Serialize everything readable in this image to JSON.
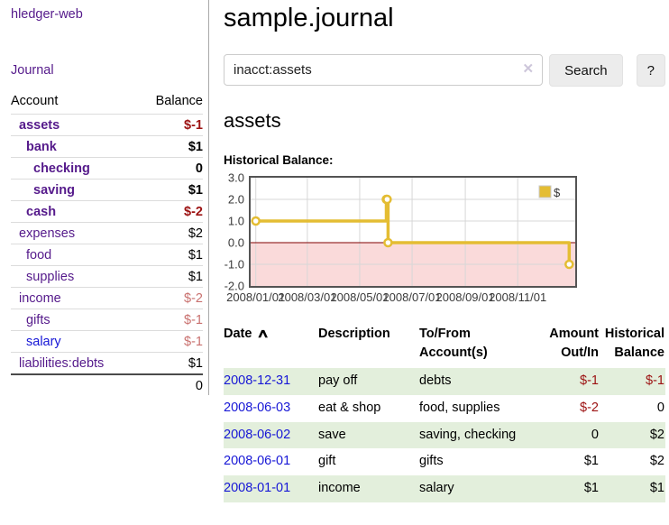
{
  "sidebar": {
    "brand": "hledger-web",
    "journal_label": "Journal",
    "accounts_table": {
      "headers": [
        "Account",
        "Balance"
      ],
      "rows": [
        {
          "account": "assets",
          "balance": "$-1",
          "level": 1,
          "bold": true,
          "balance_style": "neg-strong",
          "link_style": "plink"
        },
        {
          "account": "bank",
          "balance": "$1",
          "level": 2,
          "bold": true,
          "balance_style": "pos",
          "link_style": "plink"
        },
        {
          "account": "checking",
          "balance": "0",
          "level": 3,
          "bold": true,
          "balance_style": "pos",
          "link_style": "plink"
        },
        {
          "account": "saving",
          "balance": "$1",
          "level": 3,
          "bold": true,
          "balance_style": "pos",
          "link_style": "plink"
        },
        {
          "account": "cash",
          "balance": "$-2",
          "level": 2,
          "bold": true,
          "balance_style": "neg-strong",
          "link_style": "plink"
        },
        {
          "account": "expenses",
          "balance": "$2",
          "level": 1,
          "bold": false,
          "balance_style": "pos",
          "link_style": "plink"
        },
        {
          "account": "food",
          "balance": "$1",
          "level": 2,
          "bold": false,
          "balance_style": "pos",
          "link_style": "plink"
        },
        {
          "account": "supplies",
          "balance": "$1",
          "level": 2,
          "bold": false,
          "balance_style": "pos",
          "link_style": "plink"
        },
        {
          "account": "income",
          "balance": "$-2",
          "level": 1,
          "bold": false,
          "balance_style": "neg-muted",
          "link_style": "plink"
        },
        {
          "account": "gifts",
          "balance": "$-1",
          "level": 2,
          "bold": false,
          "balance_style": "neg-muted",
          "link_style": "plink"
        },
        {
          "account": "salary",
          "balance": "$-1",
          "level": 2,
          "bold": false,
          "balance_style": "neg-muted",
          "link_style": "blink"
        },
        {
          "account": "liabilities:debts",
          "balance": "$1",
          "level": 1,
          "bold": false,
          "balance_style": "pos",
          "link_style": "plink"
        }
      ],
      "total": "0"
    }
  },
  "header": {
    "title": "sample.journal"
  },
  "search": {
    "value": "inacct:assets",
    "clear_icon": "✕",
    "button_label": "Search",
    "help_label": "?"
  },
  "account_page": {
    "title": "assets",
    "chart_label": "Historical Balance:"
  },
  "chart_data": {
    "type": "line",
    "step": true,
    "title": "Historical Balance:",
    "series": [
      {
        "name": "$",
        "color": "#e4bd33",
        "points": [
          [
            "2008-01-01",
            1
          ],
          [
            "2008-06-01",
            2
          ],
          [
            "2008-06-02",
            2
          ],
          [
            "2008-06-03",
            0
          ],
          [
            "2008-12-31",
            -1
          ]
        ]
      }
    ],
    "x_ticks": [
      "2008/01/01",
      "2008/03/01",
      "2008/05/01",
      "2008/07/01",
      "2008/09/01",
      "2008/11/01"
    ],
    "y_ticks": [
      "3.0",
      "2.0",
      "1.0",
      "0.0",
      "-1.0",
      "-2.0"
    ],
    "ylim": [
      -2,
      3
    ],
    "x_domain": [
      "2007-12-26",
      "2009-01-07"
    ],
    "grid": true,
    "legend_position": "top-right",
    "negative_fill": "#fadada",
    "zero_line_color": "#800000",
    "grid_color": "#d7d7d7",
    "border_color": "#545454"
  },
  "register_table": {
    "headers": [
      {
        "key": "date",
        "lines": [
          "Date"
        ],
        "align": "left",
        "sort_indicator": "∧",
        "sortable": true
      },
      {
        "key": "description",
        "lines": [
          "Description"
        ],
        "align": "left"
      },
      {
        "key": "accounts",
        "lines": [
          "To/From",
          "Account(s)"
        ],
        "align": "left"
      },
      {
        "key": "amount",
        "lines": [
          "Amount",
          "Out/In"
        ],
        "align": "right"
      },
      {
        "key": "balance",
        "lines": [
          "Historical",
          "Balance"
        ],
        "align": "right"
      }
    ],
    "rows": [
      {
        "date": "2008-12-31",
        "description": "pay off",
        "accounts": "debts",
        "amount": "$-1",
        "amount_neg": true,
        "balance": "$-1",
        "balance_neg": true,
        "shaded": true
      },
      {
        "date": "2008-06-03",
        "description": "eat & shop",
        "accounts": "food, supplies",
        "amount": "$-2",
        "amount_neg": true,
        "balance": "0",
        "balance_neg": false,
        "shaded": false
      },
      {
        "date": "2008-06-02",
        "description": "save",
        "accounts": "saving, checking",
        "amount": "0",
        "amount_neg": false,
        "balance": "$2",
        "balance_neg": false,
        "shaded": true
      },
      {
        "date": "2008-06-01",
        "description": "gift",
        "accounts": "gifts",
        "amount": "$1",
        "amount_neg": false,
        "balance": "$2",
        "balance_neg": false,
        "shaded": false
      },
      {
        "date": "2008-01-01",
        "description": "income",
        "accounts": "salary",
        "amount": "$1",
        "amount_neg": false,
        "balance": "$1",
        "balance_neg": false,
        "shaded": true
      }
    ]
  },
  "colors": {
    "link_visited": "#551a8b",
    "link_unvisited": "#1717d6",
    "negative_strong": "#9c1212",
    "negative_muted": "#c9716f",
    "row_shade": "#e3efdc",
    "chart_line": "#e4bd33"
  }
}
